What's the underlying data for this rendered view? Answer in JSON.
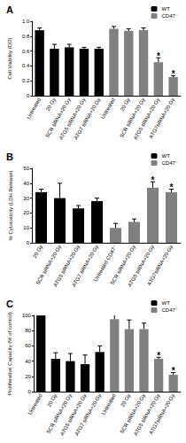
{
  "chart_data": [
    {
      "type": "bar",
      "title": "A",
      "ylabel": "Cell Viability (OD)",
      "categories": [
        "Untreated",
        "20 Gy",
        "SCR siRNA+20 Gy",
        "ATG5 siRNA+20 Gy",
        "ATG7 siRNA+20 Gy",
        "Untreated",
        "20 Gy",
        "SCR siRNA+20 Gy",
        "ATG5 siRNA+20 Gy",
        "ATG7siRNA+20 Gy"
      ],
      "series": [
        {
          "name": "WT",
          "color": "#000000",
          "values": [
            0.88,
            0.63,
            0.65,
            0.63,
            0.63,
            null,
            null,
            null,
            null,
            null
          ],
          "errors": [
            0.03,
            0.06,
            0.04,
            0.02,
            0.02,
            null,
            null,
            null,
            null,
            null
          ]
        },
        {
          "name": "CD47⁻",
          "color": "#808080",
          "values": [
            null,
            null,
            null,
            null,
            null,
            0.9,
            0.87,
            0.88,
            0.45,
            0.25
          ],
          "errors": [
            null,
            null,
            null,
            null,
            null,
            0.03,
            0.03,
            0.03,
            0.06,
            0.02
          ]
        }
      ],
      "ylim": [
        0,
        1
      ],
      "yticks": [
        0,
        0.2,
        0.4,
        0.6,
        0.8,
        {
          "value": 1,
          "label": "1.0"
        }
      ],
      "grid": false,
      "legend": "upper right",
      "annotations": [
        {
          "text": "*",
          "series": "CD47⁻",
          "index": 8
        },
        {
          "text": "*",
          "series": "CD47⁻",
          "index": 9
        }
      ]
    },
    {
      "type": "bar",
      "title": "B",
      "ylabel": "% Cytotoxicity (LDH Release)",
      "categories": [
        "20 Gy",
        "SCR siRNA+20 Gy",
        "ATG5 siRNA+20 Gy",
        "ATG7 siRNA+20 Gy",
        "Untreated CD47⁻",
        "SCR siRNA+20 Gy",
        "ATG5 siRNA+20 Gy",
        "ATG7siRNA+20 Gy"
      ],
      "series": [
        {
          "name": "WT",
          "color": "#000000",
          "values": [
            34,
            30,
            23,
            28,
            null,
            null,
            null,
            null
          ],
          "errors": [
            2,
            10,
            2,
            2,
            null,
            null,
            null,
            null
          ]
        },
        {
          "name": "CD47⁻",
          "color": "#808080",
          "values": [
            null,
            null,
            null,
            null,
            10,
            14,
            37,
            34
          ],
          "errors": [
            null,
            null,
            null,
            null,
            3,
            2,
            4,
            2
          ]
        }
      ],
      "ylim": [
        0,
        50
      ],
      "yticks": [
        0,
        10,
        20,
        30,
        40,
        50
      ],
      "grid": false,
      "legend": "upper right",
      "annotations": [
        {
          "text": "*",
          "series": "CD47⁻",
          "index": 6
        },
        {
          "text": "*",
          "series": "CD47⁻",
          "index": 7
        }
      ]
    },
    {
      "type": "bar",
      "title": "C",
      "ylabel": "Proliferative Capacity (% of control)",
      "categories": [
        "Untreated",
        "20 Gy",
        "SCR siRNA+20 Gy",
        "ATG5 siRNA+20 Gy",
        "ATG7 siRNA+20 Gy",
        "Untreated",
        "20 Gy",
        "SCR siRNA+20 Gy",
        "ATG5 siRNA+20 Gy",
        "ATG7siRNA+20 Gy"
      ],
      "series": [
        {
          "name": "WT",
          "color": "#000000",
          "values": [
            100,
            43,
            40,
            36,
            52,
            null,
            null,
            null,
            null,
            null
          ],
          "errors": [
            0,
            8,
            10,
            12,
            8,
            null,
            null,
            null,
            null,
            null
          ]
        },
        {
          "name": "CD47⁻",
          "color": "#808080",
          "values": [
            null,
            null,
            null,
            null,
            null,
            95,
            82,
            82,
            43,
            22
          ],
          "errors": [
            null,
            null,
            null,
            null,
            null,
            8,
            12,
            8,
            2,
            3
          ]
        }
      ],
      "ylim": [
        0,
        100
      ],
      "yticks": [
        0,
        20,
        40,
        60,
        80,
        100
      ],
      "grid": false,
      "legend": "upper right",
      "annotations": [
        {
          "text": "*",
          "series": "CD47⁻",
          "index": 8
        },
        {
          "text": "*",
          "series": "CD47⁻",
          "index": 9
        }
      ]
    }
  ]
}
